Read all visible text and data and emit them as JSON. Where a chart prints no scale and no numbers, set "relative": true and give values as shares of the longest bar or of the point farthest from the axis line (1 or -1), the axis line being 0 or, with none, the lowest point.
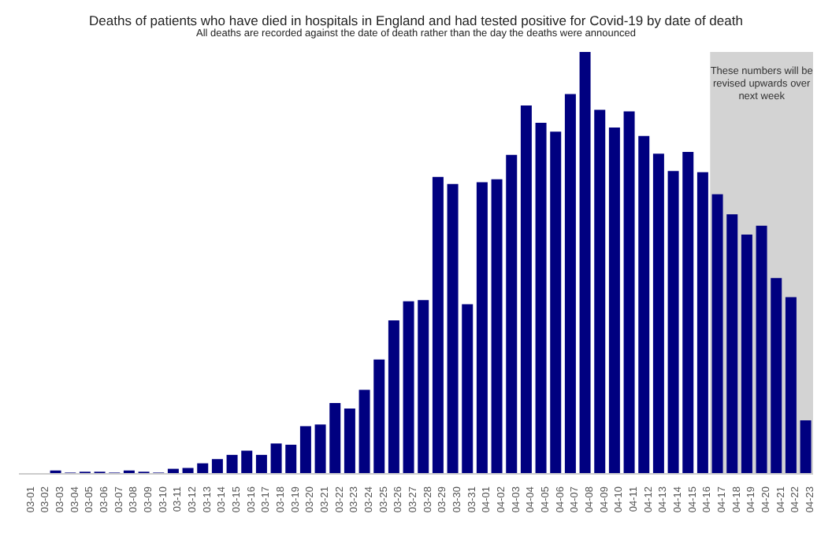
{
  "chart_data": {
    "type": "bar",
    "title": "Deaths of patients who have died in hospitals in England and had tested positive for Covid-19 by date of death",
    "subtitle": "All deaths are recorded against the date of death rather than the day the deaths were announced",
    "categories": [
      "03-01",
      "03-02",
      "03-03",
      "03-04",
      "03-05",
      "03-06",
      "03-07",
      "03-08",
      "03-09",
      "03-10",
      "03-11",
      "03-12",
      "03-13",
      "03-14",
      "03-15",
      "03-16",
      "03-17",
      "03-18",
      "03-19",
      "03-20",
      "03-21",
      "03-22",
      "03-23",
      "03-24",
      "03-25",
      "03-26",
      "03-27",
      "03-28",
      "03-29",
      "03-30",
      "03-31",
      "04-01",
      "04-02",
      "04-03",
      "04-04",
      "04-05",
      "04-06",
      "04-07",
      "04-08",
      "04-09",
      "04-10",
      "04-11",
      "04-12",
      "04-13",
      "04-14",
      "04-15",
      "04-16",
      "04-17",
      "04-18",
      "04-19",
      "04-20",
      "04-21",
      "04-22",
      "04-23"
    ],
    "values": [
      null,
      null,
      0.008,
      0.003,
      0.005,
      0.005,
      0.003,
      0.008,
      0.005,
      0.003,
      0.012,
      0.014,
      0.025,
      0.035,
      0.045,
      0.055,
      0.045,
      0.072,
      0.069,
      0.113,
      0.117,
      0.168,
      0.155,
      0.199,
      0.271,
      0.364,
      0.409,
      0.412,
      0.704,
      0.687,
      0.402,
      0.691,
      0.698,
      0.756,
      0.873,
      0.832,
      0.811,
      0.9,
      1,
      0.863,
      0.821,
      0.859,
      0.801,
      0.759,
      0.718,
      0.763,
      0.715,
      0.663,
      0.615,
      0.567,
      0.588,
      0.464,
      0.419,
      0.127
    ],
    "color": "#000080",
    "relative": true,
    "bands": [
      {
        "axis": "x",
        "from": "04-17",
        "to": "04-23",
        "label": "These numbers will be revised upwards over next week",
        "color": "#d3d3d3"
      }
    ]
  }
}
